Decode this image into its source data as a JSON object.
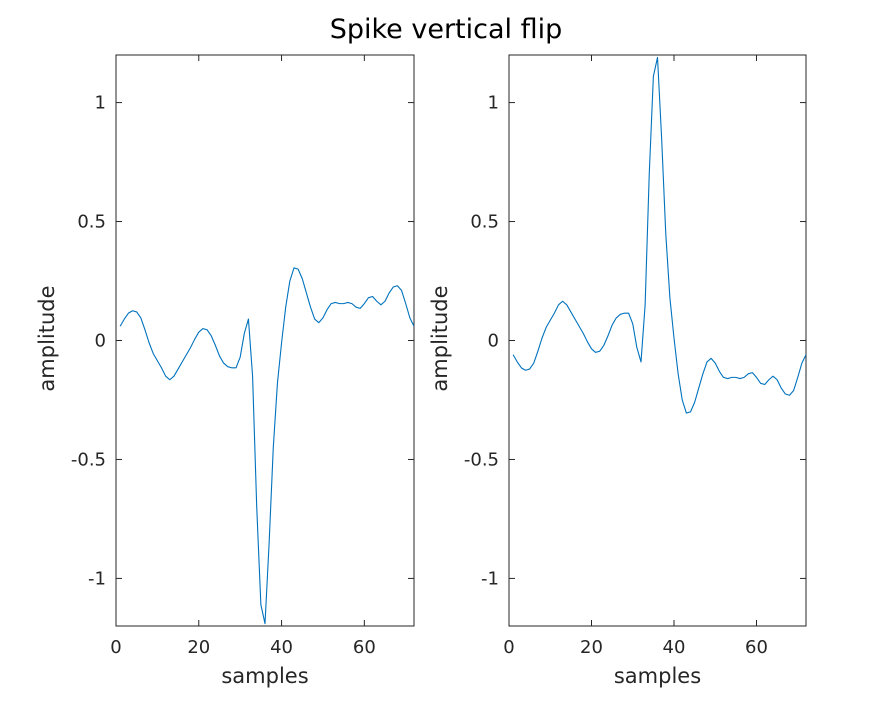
{
  "figure": {
    "title": "Spike vertical flip"
  },
  "chart_data": [
    {
      "type": "line",
      "xlabel": "samples",
      "ylabel": "amplitude",
      "xlim": [
        0,
        72
      ],
      "ylim": [
        -1.2,
        1.2
      ],
      "xticks": [
        0,
        20,
        40,
        60
      ],
      "xtick_labels": [
        "0",
        "20",
        "40",
        "60"
      ],
      "yticks": [
        -1,
        -0.5,
        0,
        0.5,
        1
      ],
      "ytick_labels": [
        "-1",
        "-0.5",
        "0",
        "0.5",
        "1"
      ],
      "grid": false,
      "color": "#0072BD",
      "series": [
        {
          "x": [
            1,
            2,
            3,
            4,
            5,
            6,
            7,
            8,
            9,
            10,
            11,
            12,
            13,
            14,
            15,
            16,
            17,
            18,
            19,
            20,
            21,
            22,
            23,
            24,
            25,
            26,
            27,
            28,
            29,
            30,
            31,
            32,
            33,
            34,
            35,
            36,
            37,
            38,
            39,
            40,
            41,
            42,
            43,
            44,
            45,
            46,
            47,
            48,
            49,
            50,
            51,
            52,
            53,
            54,
            55,
            56,
            57,
            58,
            59,
            60,
            61,
            62,
            63,
            64,
            65,
            66,
            67,
            68,
            69,
            70,
            71,
            72
          ],
          "y": [
            0.06,
            0.09,
            0.115,
            0.125,
            0.12,
            0.095,
            0.045,
            -0.01,
            -0.055,
            -0.085,
            -0.115,
            -0.15,
            -0.165,
            -0.15,
            -0.12,
            -0.09,
            -0.06,
            -0.03,
            0.005,
            0.035,
            0.05,
            0.045,
            0.02,
            -0.02,
            -0.065,
            -0.095,
            -0.11,
            -0.115,
            -0.115,
            -0.07,
            0.03,
            0.09,
            -0.15,
            -0.7,
            -1.11,
            -1.19,
            -0.85,
            -0.45,
            -0.18,
            -0.01,
            0.14,
            0.25,
            0.305,
            0.3,
            0.26,
            0.2,
            0.14,
            0.09,
            0.075,
            0.095,
            0.13,
            0.155,
            0.16,
            0.155,
            0.155,
            0.16,
            0.155,
            0.14,
            0.135,
            0.155,
            0.18,
            0.185,
            0.165,
            0.15,
            0.165,
            0.2,
            0.225,
            0.23,
            0.21,
            0.155,
            0.095,
            0.06
          ]
        }
      ]
    },
    {
      "type": "line",
      "xlabel": "samples",
      "ylabel": "amplitude",
      "xlim": [
        0,
        72
      ],
      "ylim": [
        -1.2,
        1.2
      ],
      "xticks": [
        0,
        20,
        40,
        60
      ],
      "xtick_labels": [
        "0",
        "20",
        "40",
        "60"
      ],
      "yticks": [
        -1,
        -0.5,
        0,
        0.5,
        1
      ],
      "ytick_labels": [
        "-1",
        "-0.5",
        "0",
        "0.5",
        "1"
      ],
      "grid": false,
      "color": "#0072BD",
      "series": [
        {
          "x": [
            1,
            2,
            3,
            4,
            5,
            6,
            7,
            8,
            9,
            10,
            11,
            12,
            13,
            14,
            15,
            16,
            17,
            18,
            19,
            20,
            21,
            22,
            23,
            24,
            25,
            26,
            27,
            28,
            29,
            30,
            31,
            32,
            33,
            34,
            35,
            36,
            37,
            38,
            39,
            40,
            41,
            42,
            43,
            44,
            45,
            46,
            47,
            48,
            49,
            50,
            51,
            52,
            53,
            54,
            55,
            56,
            57,
            58,
            59,
            60,
            61,
            62,
            63,
            64,
            65,
            66,
            67,
            68,
            69,
            70,
            71,
            72
          ],
          "y": [
            -0.06,
            -0.09,
            -0.115,
            -0.125,
            -0.12,
            -0.095,
            -0.045,
            0.01,
            0.055,
            0.085,
            0.115,
            0.15,
            0.165,
            0.15,
            0.12,
            0.09,
            0.06,
            0.03,
            -0.005,
            -0.035,
            -0.05,
            -0.045,
            -0.02,
            0.02,
            0.065,
            0.095,
            0.11,
            0.115,
            0.115,
            0.07,
            -0.03,
            -0.09,
            0.15,
            0.7,
            1.11,
            1.19,
            0.85,
            0.45,
            0.18,
            0.01,
            -0.14,
            -0.25,
            -0.305,
            -0.3,
            -0.26,
            -0.2,
            -0.14,
            -0.09,
            -0.075,
            -0.095,
            -0.13,
            -0.155,
            -0.16,
            -0.155,
            -0.155,
            -0.16,
            -0.155,
            -0.14,
            -0.135,
            -0.155,
            -0.18,
            -0.185,
            -0.165,
            -0.15,
            -0.165,
            -0.2,
            -0.225,
            -0.23,
            -0.21,
            -0.155,
            -0.095,
            -0.06
          ]
        }
      ]
    }
  ]
}
